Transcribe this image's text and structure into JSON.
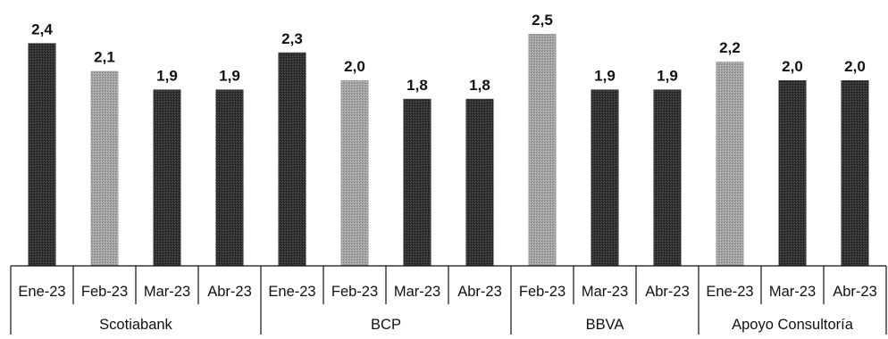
{
  "chart_data": {
    "type": "bar",
    "groups": [
      {
        "name": "Scotiabank",
        "bars": [
          {
            "label": "Ene-23",
            "value": 2.4,
            "display": "2,4",
            "style": "dark"
          },
          {
            "label": "Feb-23",
            "value": 2.1,
            "display": "2,1",
            "style": "light"
          },
          {
            "label": "Mar-23",
            "value": 1.9,
            "display": "1,9",
            "style": "dark"
          },
          {
            "label": "Abr-23",
            "value": 1.9,
            "display": "1,9",
            "style": "dark"
          }
        ]
      },
      {
        "name": "BCP",
        "bars": [
          {
            "label": "Ene-23",
            "value": 2.3,
            "display": "2,3",
            "style": "dark"
          },
          {
            "label": "Feb-23",
            "value": 2.0,
            "display": "2,0",
            "style": "light"
          },
          {
            "label": "Mar-23",
            "value": 1.8,
            "display": "1,8",
            "style": "dark"
          },
          {
            "label": "Abr-23",
            "value": 1.8,
            "display": "1,8",
            "style": "dark"
          }
        ]
      },
      {
        "name": "BBVA",
        "bars": [
          {
            "label": "Feb-23",
            "value": 2.5,
            "display": "2,5",
            "style": "light"
          },
          {
            "label": "Mar-23",
            "value": 1.9,
            "display": "1,9",
            "style": "dark"
          },
          {
            "label": "Abr-23",
            "value": 1.9,
            "display": "1,9",
            "style": "dark"
          }
        ]
      },
      {
        "name": "Apoyo Consultoría",
        "bars": [
          {
            "label": "Ene-23",
            "value": 2.2,
            "display": "2,2",
            "style": "light"
          },
          {
            "label": "Mar-23",
            "value": 2.0,
            "display": "2,0",
            "style": "dark"
          },
          {
            "label": "Abr-23",
            "value": 2.0,
            "display": "2,0",
            "style": "dark"
          }
        ]
      }
    ],
    "ylim": [
      0,
      2.5
    ],
    "grid": false,
    "legend": "none",
    "colors": {
      "dark": "#2a2a2a",
      "light": "#a3a3a3",
      "axis": "#111111"
    }
  }
}
